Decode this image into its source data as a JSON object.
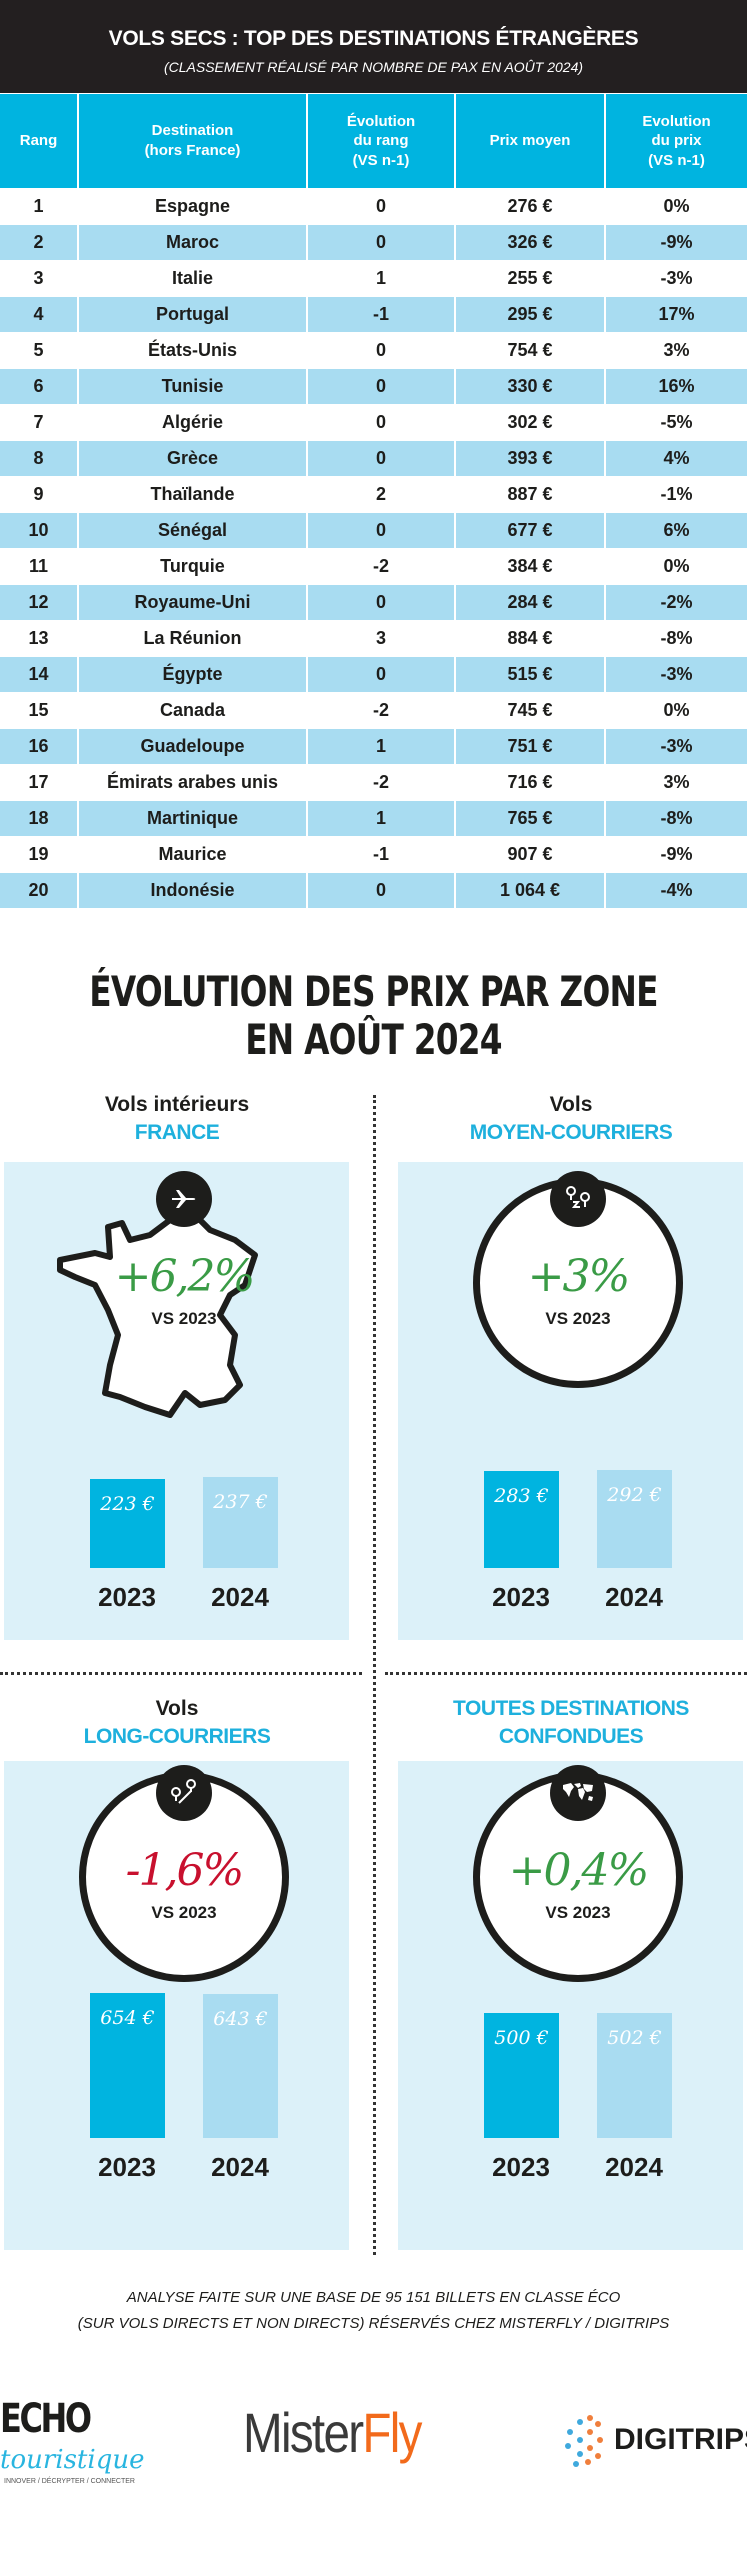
{
  "header": {
    "title": "VOLS SECS : TOP DES DESTINATIONS ÉTRANGÈRES",
    "subtitle": "(CLASSEMENT RÉALISÉ PAR NOMBRE DE PAX EN AOÛT 2024)"
  },
  "table": {
    "columns": [
      "Rang",
      "Destination\n(hors France)",
      "Évolution\ndu rang\n(VS n-1)",
      "Prix moyen",
      "Evolution\ndu prix\n(VS n-1)"
    ],
    "rows": [
      [
        "1",
        "Espagne",
        "0",
        "276 €",
        "0%"
      ],
      [
        "2",
        "Maroc",
        "0",
        "326 €",
        "-9%"
      ],
      [
        "3",
        "Italie",
        "1",
        "255 €",
        "-3%"
      ],
      [
        "4",
        "Portugal",
        "-1",
        "295 €",
        "17%"
      ],
      [
        "5",
        "États-Unis",
        "0",
        "754 €",
        "3%"
      ],
      [
        "6",
        "Tunisie",
        "0",
        "330 €",
        "16%"
      ],
      [
        "7",
        "Algérie",
        "0",
        "302 €",
        "-5%"
      ],
      [
        "8",
        "Grèce",
        "0",
        "393 €",
        "4%"
      ],
      [
        "9",
        "Thaïlande",
        "2",
        "887 €",
        "-1%"
      ],
      [
        "10",
        "Sénégal",
        "0",
        "677 €",
        "6%"
      ],
      [
        "11",
        "Turquie",
        "-2",
        "384 €",
        "0%"
      ],
      [
        "12",
        "Royaume-Uni",
        "0",
        "284 €",
        "-2%"
      ],
      [
        "13",
        "La Réunion",
        "3",
        "884 €",
        "-8%"
      ],
      [
        "14",
        "Égypte",
        "0",
        "515 €",
        "-3%"
      ],
      [
        "15",
        "Canada",
        "-2",
        "745 €",
        "0%"
      ],
      [
        "16",
        "Guadeloupe",
        "1",
        "751 €",
        "-3%"
      ],
      [
        "17",
        "Émirats arabes unis",
        "-2",
        "716 €",
        "3%"
      ],
      [
        "18",
        "Martinique",
        "1",
        "765 €",
        "-8%"
      ],
      [
        "19",
        "Maurice",
        "-1",
        "907 €",
        "-9%"
      ],
      [
        "20",
        "Indonésie",
        "0",
        "1 064 €",
        "-4%"
      ]
    ]
  },
  "section": {
    "title_line1": "ÉVOLUTION DES PRIX PAR ZONE",
    "title_line2": "EN AOÛT 2024"
  },
  "panels": [
    {
      "line1": "Vols intérieurs",
      "line2": "FRANCE",
      "icon": "airplane-icon",
      "change": "+6,2%",
      "change_color": "#3a9b46",
      "vs": "VS 2023",
      "bars": [
        {
          "year": "2023",
          "label": "223 €",
          "value": 223
        },
        {
          "year": "2024",
          "label": "237 €",
          "value": 237
        }
      ]
    },
    {
      "line1": "Vols",
      "line2": "MOYEN-COURRIERS",
      "icon": "route-pins-icon",
      "change": "+3%",
      "change_color": "#3a9b46",
      "vs": "VS 2023",
      "bars": [
        {
          "year": "2023",
          "label": "283 €",
          "value": 283
        },
        {
          "year": "2024",
          "label": "292 €",
          "value": 292
        }
      ]
    },
    {
      "line1": "Vols",
      "line2": "LONG-COURRIERS",
      "icon": "long-route-pins-icon",
      "change": "-1,6%",
      "change_color": "#c8102e",
      "vs": "VS 2023",
      "bars": [
        {
          "year": "2023",
          "label": "654 €",
          "value": 654
        },
        {
          "year": "2024",
          "label": "643 €",
          "value": 643
        }
      ]
    },
    {
      "line1": "TOUTES DESTINATIONS",
      "line2": "CONFONDUES",
      "icon": "world-map-icon",
      "change": "+0,4%",
      "change_color": "#3a9b46",
      "vs": "VS 2023",
      "bars": [
        {
          "year": "2023",
          "label": "500 €",
          "value": 500
        },
        {
          "year": "2024",
          "label": "502 €",
          "value": 502
        }
      ]
    }
  ],
  "footer": {
    "line1": "ANALYSE FAITE SUR UNE BASE DE 95 151  BILLETS EN CLASSE ÉCO",
    "line2": "(SUR VOLS DIRECTS ET NON DIRECTS) RÉSERVÉS CHEZ MISTERFLY / DIGITRIPS"
  },
  "logos": {
    "echo": "ECHO",
    "echo_script": "touristique",
    "echo_tagline": "INNOVER / DÉCRYPTER / CONNECTER",
    "misterfly_a": "Mister",
    "misterfly_b": "Fly",
    "digitrips": "DIGITRIPS"
  }
}
